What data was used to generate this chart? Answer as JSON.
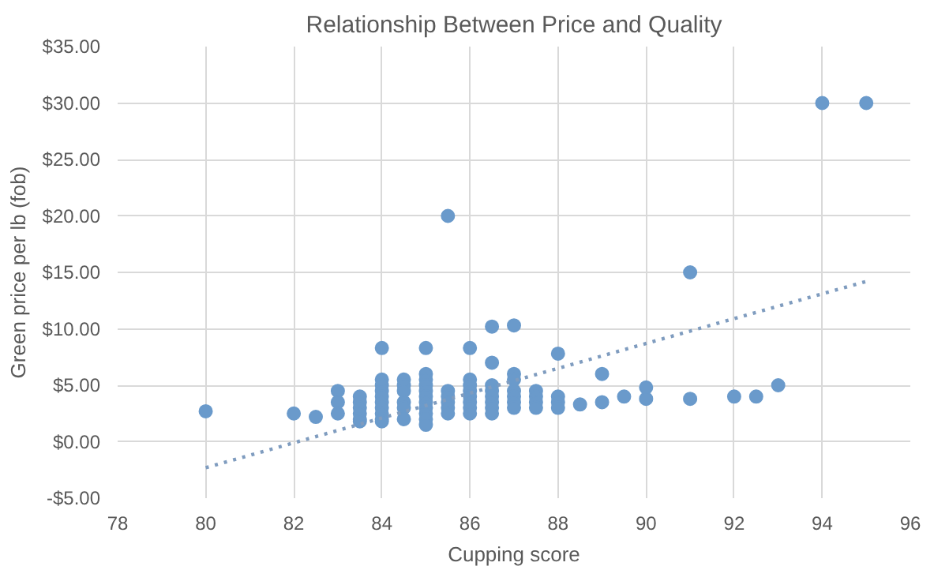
{
  "chart_data": {
    "type": "scatter",
    "title": "Relationship Between Price and Quality",
    "xlabel": "Cupping score",
    "ylabel": "Green price per lb (fob)",
    "xlim": [
      78,
      96
    ],
    "xticks": [
      78,
      80,
      82,
      84,
      86,
      88,
      90,
      92,
      94,
      96
    ],
    "ylim": [
      -5,
      35
    ],
    "yticks": [
      {
        "value": -5,
        "label": "-$5.00"
      },
      {
        "value": 0,
        "label": "$0.00"
      },
      {
        "value": 5,
        "label": "$5.00"
      },
      {
        "value": 10,
        "label": "$10.00"
      },
      {
        "value": 15,
        "label": "$15.00"
      },
      {
        "value": 20,
        "label": "$20.00"
      },
      {
        "value": 25,
        "label": "$25.00"
      },
      {
        "value": 30,
        "label": "$30.00"
      },
      {
        "value": 35,
        "label": "$35.00"
      }
    ],
    "grid": true,
    "marker": "circle",
    "series": [
      {
        "color": "#6a9acb",
        "x": [
          80,
          82,
          82.5,
          83,
          83,
          83,
          83.5,
          83.5,
          83.5,
          83.5,
          83.5,
          83.5,
          84,
          84,
          84,
          84,
          84,
          84,
          84,
          84,
          84,
          84,
          84.5,
          84.5,
          84.5,
          84.5,
          84.5,
          84.5,
          85,
          85,
          85,
          85,
          85,
          85,
          85,
          85,
          85,
          85,
          85,
          85.5,
          85.5,
          85.5,
          85.5,
          85.5,
          85.5,
          86,
          86,
          86,
          86,
          86,
          86,
          86,
          86,
          86.5,
          86.5,
          86.5,
          86.5,
          86.5,
          86.5,
          86.5,
          86.5,
          87,
          87,
          87,
          87,
          87,
          87,
          87,
          87.5,
          87.5,
          87.5,
          87.5,
          88,
          88,
          88,
          88,
          88.5,
          89,
          89,
          89.5,
          90,
          90,
          91,
          91,
          92,
          92.5,
          93,
          94,
          95
        ],
        "values": [
          2.7,
          2.5,
          2.2,
          4.5,
          3.5,
          2.5,
          4,
          3.5,
          3,
          2.5,
          2,
          1.8,
          8.3,
          5.5,
          5,
          4.5,
          4,
          3.5,
          3,
          2.5,
          2,
          1.8,
          5.5,
          5,
          4.5,
          3.5,
          3,
          2,
          8.3,
          6,
          5.5,
          5,
          4.5,
          4,
          3.5,
          3,
          2.5,
          2,
          1.5,
          20,
          4.5,
          4,
          3.5,
          3,
          2.5,
          8.3,
          5.5,
          5,
          4.5,
          4,
          3.5,
          3,
          2.5,
          10.2,
          7,
          5,
          4.5,
          4,
          3.5,
          3,
          2.5,
          10.3,
          6,
          5.5,
          4.5,
          4,
          3.5,
          3,
          4.5,
          4,
          3.5,
          3,
          7.8,
          4,
          3.5,
          3,
          3.3,
          6,
          3.5,
          4,
          4.8,
          3.8,
          15,
          3.8,
          4,
          4,
          5,
          30,
          30
        ]
      },
      {
        "type": "line",
        "color": "#7f9cbf",
        "line_style": "dotted",
        "marker": "none",
        "x": [
          80,
          95
        ],
        "values": [
          -2.3,
          14.2
        ]
      }
    ]
  }
}
